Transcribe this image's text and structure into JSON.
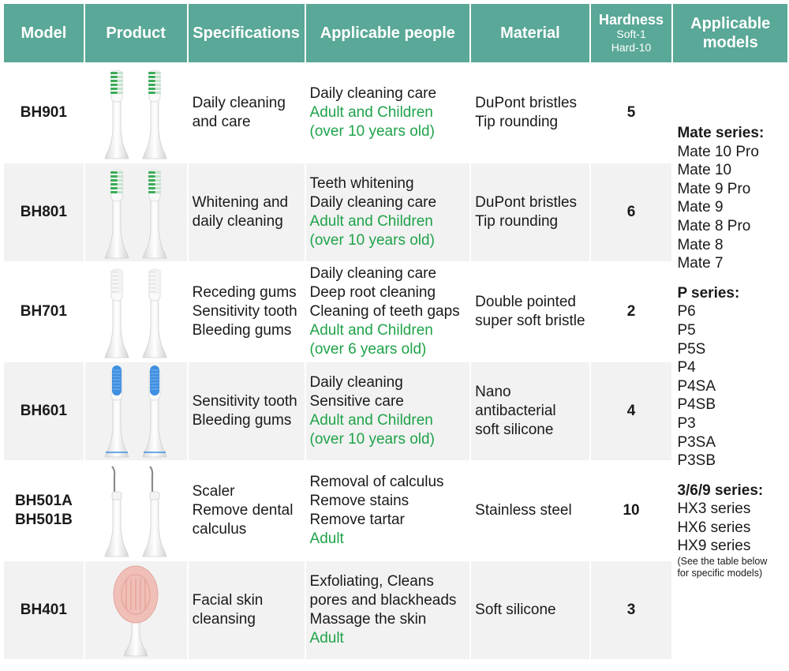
{
  "headers": {
    "model": "Model",
    "product": "Product",
    "specifications": "Specifications",
    "people": "Applicable people",
    "material": "Material",
    "hardness_title": "Hardness",
    "hardness_soft": "Soft-1",
    "hardness_hard": "Hard-10",
    "models": "Applicable models"
  },
  "rows": [
    {
      "model": [
        "BH901"
      ],
      "spec": [
        "Daily cleaning",
        "and care"
      ],
      "people_black": [
        "Daily cleaning care"
      ],
      "people_green": [
        "Adult and Children",
        "(over 10 years old)"
      ],
      "material": [
        "DuPont bristles",
        "Tip rounding"
      ],
      "hardness": "5"
    },
    {
      "model": [
        "BH801"
      ],
      "spec": [
        "Whitening and",
        "daily cleaning"
      ],
      "people_black": [
        "Teeth whitening",
        "Daily cleaning care"
      ],
      "people_green": [
        "Adult and Children",
        "(over 10 years old)"
      ],
      "material": [
        "DuPont bristles",
        "Tip rounding"
      ],
      "hardness": "6"
    },
    {
      "model": [
        "BH701"
      ],
      "spec": [
        "Receding gums",
        "Sensitivity tooth",
        "Bleeding gums"
      ],
      "people_black": [
        "Daily cleaning care",
        "Deep root cleaning",
        "Cleaning of teeth gaps"
      ],
      "people_green": [
        "Adult and Children",
        "(over 6 years old)"
      ],
      "material": [
        "Double pointed",
        "super soft bristle"
      ],
      "hardness": "2"
    },
    {
      "model": [
        "BH601"
      ],
      "spec": [
        "Sensitivity tooth",
        "Bleeding gums"
      ],
      "people_black": [
        "Daily cleaning",
        "Sensitive care"
      ],
      "people_green": [
        "Adult and Children",
        "(over 10 years old)"
      ],
      "material": [
        "Nano antibacterial",
        "soft silicone"
      ],
      "hardness": "4"
    },
    {
      "model": [
        "BH501A",
        "BH501B"
      ],
      "spec": [
        "Scaler",
        "Remove dental",
        "calculus"
      ],
      "people_black": [
        "Removal of calculus",
        "Remove stains",
        "Remove tartar"
      ],
      "people_green": [
        "Adult"
      ],
      "material": [
        "Stainless steel"
      ],
      "hardness": "10"
    },
    {
      "model": [
        "BH401"
      ],
      "spec": [
        "Facial skin",
        "cleansing"
      ],
      "people_black": [
        "Exfoliating, Cleans",
        "pores and blackheads",
        "Massage the skin"
      ],
      "people_green": [
        "Adult"
      ],
      "material": [
        "Soft silicone"
      ],
      "hardness": "3"
    }
  ],
  "applicable_models": {
    "mate_title": "Mate series:",
    "mate": [
      "Mate 10 Pro",
      "Mate 10",
      "Mate 9 Pro",
      "Mate 9",
      "Mate 8 Pro",
      "Mate 8",
      "Mate 7"
    ],
    "p_title": "P series:",
    "p": [
      "P6",
      "P5",
      "P5S",
      "P4",
      "P4SA",
      "P4SB",
      "P3",
      "P3SA",
      "P3SB"
    ],
    "hx_title": "3/6/9 series:",
    "hx": [
      "HX3 series",
      "HX6 series",
      "HX9 series"
    ],
    "note": [
      "(See the table below",
      "for specific models)"
    ]
  },
  "colors": {
    "header": "#5aa897",
    "green_text": "#1fa34a",
    "bristle_green": "#2fa84f",
    "bristle_white": "#e8e8e8",
    "bristle_blue": "#3d8fe0",
    "pad_pink": "#f0bfb7"
  },
  "product_images": [
    "toothbrush-head-green",
    "toothbrush-head-green",
    "toothbrush-head-white",
    "toothbrush-head-blue",
    "scaler-head",
    "facial-silicone-pad"
  ]
}
